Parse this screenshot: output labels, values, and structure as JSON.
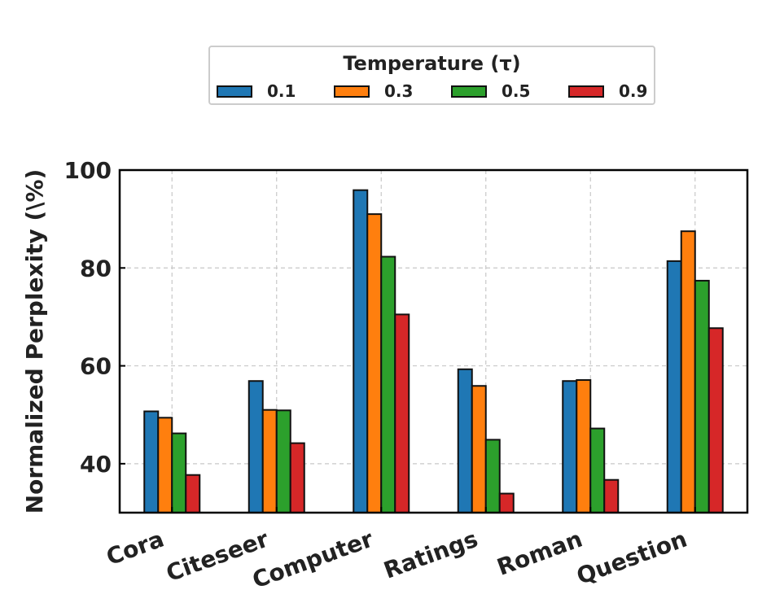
{
  "chart_data": {
    "type": "bar",
    "title": "",
    "xlabel": "",
    "ylabel": "Normalized Perplexity (\\%)",
    "ylim": [
      30,
      100
    ],
    "yticks": [
      40,
      60,
      80,
      100
    ],
    "grid": true,
    "categories": [
      "Cora",
      "Citeseer",
      "Computer",
      "Ratings",
      "Roman",
      "Question"
    ],
    "legend": {
      "title": "Temperature (τ)",
      "placement": "top-center"
    },
    "series": [
      {
        "name": "0.1",
        "color": "#1f77b4",
        "values": [
          50.7,
          56.9,
          95.9,
          59.3,
          56.9,
          81.4
        ]
      },
      {
        "name": "0.3",
        "color": "#ff7f0e",
        "values": [
          49.4,
          51.0,
          91.0,
          55.9,
          57.1,
          87.5
        ]
      },
      {
        "name": "0.5",
        "color": "#2ca02c",
        "values": [
          46.2,
          50.9,
          82.3,
          44.9,
          47.2,
          77.4
        ]
      },
      {
        "name": "0.9",
        "color": "#d62728",
        "values": [
          37.7,
          44.2,
          70.5,
          33.9,
          36.7,
          67.7
        ]
      }
    ]
  }
}
